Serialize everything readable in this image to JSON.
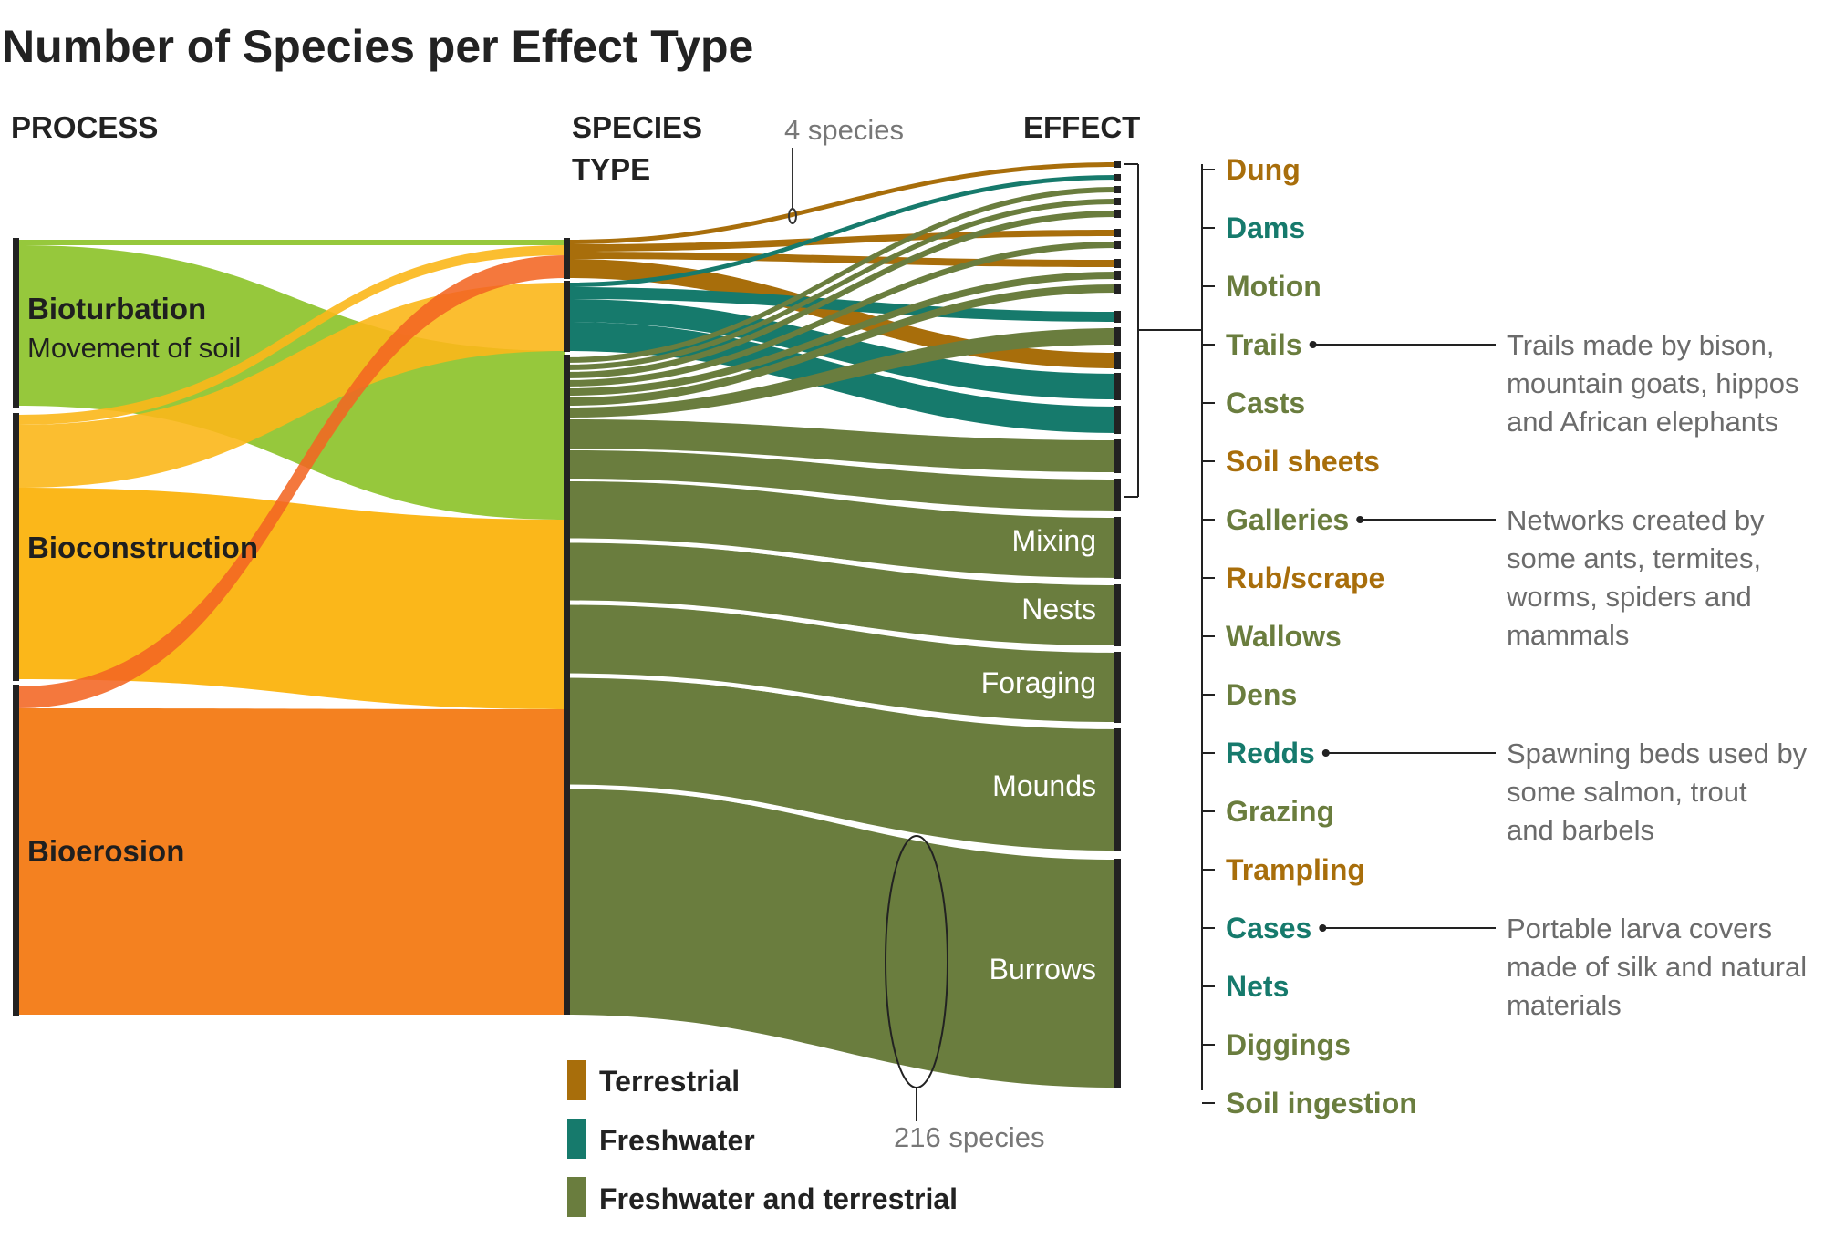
{
  "title": "Number of Species per Effect Type",
  "headers": {
    "process": "PROCESS",
    "species_line1": "SPECIES",
    "species_line2": "TYPE",
    "effect": "EFFECT"
  },
  "processes": [
    {
      "name": "Bioturbation",
      "subtitle": "Movement of soil",
      "color": "#96c83c"
    },
    {
      "name": "Bioconstruction",
      "subtitle": "",
      "color": "#fbb71a"
    },
    {
      "name": "Bioerosion",
      "subtitle": "",
      "color": "#f48120"
    }
  ],
  "species_types": [
    {
      "name": "Terrestrial",
      "color": "#a86e0b"
    },
    {
      "name": "Freshwater",
      "color": "#167a6c"
    },
    {
      "name": "Freshwater and terrestrial",
      "color": "#6a7d3e"
    }
  ],
  "effects": [
    {
      "name": "Dung",
      "type": "Terrestrial"
    },
    {
      "name": "Dams",
      "type": "Freshwater"
    },
    {
      "name": "Motion",
      "type": "Freshwater and terrestrial"
    },
    {
      "name": "Trails",
      "type": "Freshwater and terrestrial",
      "note": [
        "Trails made by bison,",
        "mountain goats, hippos",
        "and African elephants"
      ]
    },
    {
      "name": "Casts",
      "type": "Freshwater and terrestrial"
    },
    {
      "name": "Soil sheets",
      "type": "Terrestrial"
    },
    {
      "name": "Galleries",
      "type": "Freshwater and terrestrial",
      "note": [
        "Networks created by",
        "some ants, termites,",
        "worms, spiders and",
        "mammals"
      ]
    },
    {
      "name": "Rub/scrape",
      "type": "Terrestrial"
    },
    {
      "name": "Wallows",
      "type": "Freshwater and terrestrial"
    },
    {
      "name": "Dens",
      "type": "Freshwater and terrestrial"
    },
    {
      "name": "Redds",
      "type": "Freshwater",
      "note": [
        "Spawning beds used by",
        "some salmon, trout",
        "and barbels"
      ]
    },
    {
      "name": "Grazing",
      "type": "Freshwater and terrestrial"
    },
    {
      "name": "Trampling",
      "type": "Terrestrial"
    },
    {
      "name": "Cases",
      "type": "Freshwater",
      "note": [
        "Portable larva covers",
        "made of silk and natural",
        "materials"
      ]
    },
    {
      "name": "Nets",
      "type": "Freshwater"
    },
    {
      "name": "Diggings",
      "type": "Freshwater and terrestrial"
    },
    {
      "name": "Soil ingestion",
      "type": "Freshwater and terrestrial"
    }
  ],
  "large_effects": [
    "Mixing",
    "Nests",
    "Foraging",
    "Mounds",
    "Burrows"
  ],
  "annotations": {
    "small": "4 species",
    "large": "216 species"
  }
}
